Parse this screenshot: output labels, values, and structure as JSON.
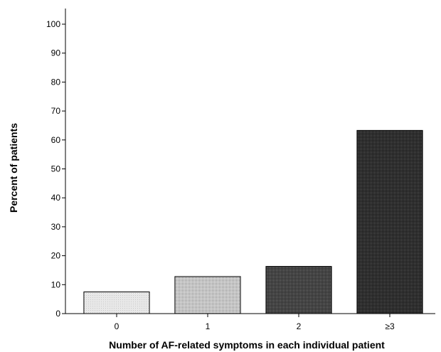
{
  "chart_data": {
    "type": "bar",
    "title": "",
    "xlabel": "Number of AF-related symptoms in each individual patient",
    "ylabel": "Percent of patients",
    "categories": [
      "0",
      "1",
      "2",
      "≥3"
    ],
    "values": [
      7.5,
      12.8,
      16.3,
      63.3
    ],
    "ylim": [
      0,
      100
    ],
    "yticks": [
      0,
      10,
      20,
      30,
      40,
      50,
      60,
      70,
      80,
      90,
      100
    ],
    "grid": false,
    "legend": "none",
    "bar_fills": [
      "#e6e6e6",
      "#b4b4b4",
      "#3c3c3c",
      "#222222"
    ]
  }
}
